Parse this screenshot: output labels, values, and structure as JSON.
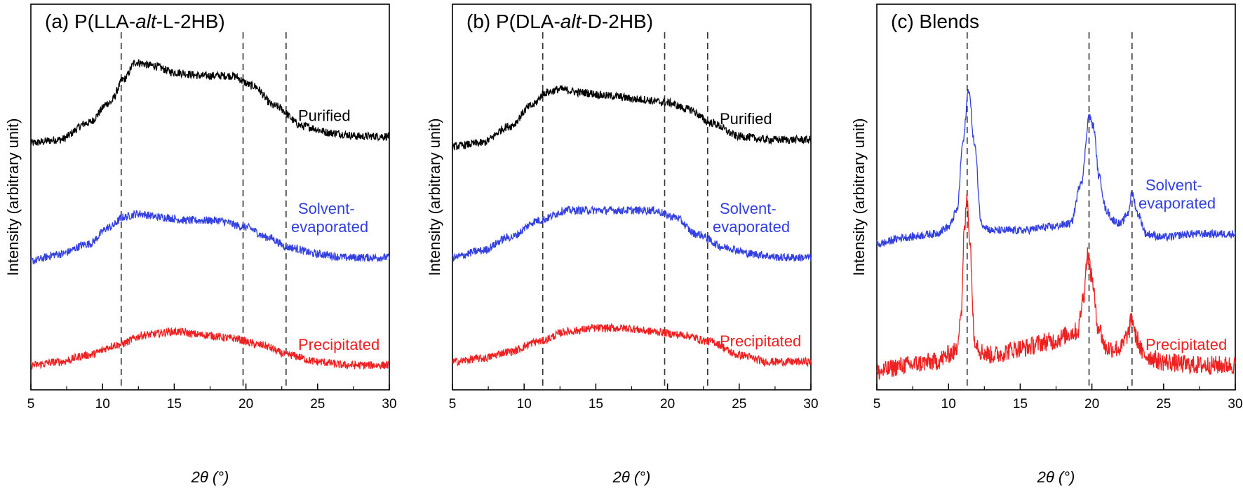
{
  "chart_data": [
    {
      "type": "line",
      "title": "(a) P(LLA-alt-L-2HB)",
      "title_parts": {
        "prefix": "(a) P(LLA-",
        "italic": "alt",
        "suffix": "-L-2HB)"
      },
      "xlabel": "2θ (°)",
      "ylabel": "Intensity (arbitrary unit)",
      "xlim": [
        5,
        30
      ],
      "xticks": [
        "5",
        "10",
        "15",
        "20",
        "25",
        "30"
      ],
      "reference_lines": [
        11.3,
        19.8,
        22.8
      ],
      "series": [
        {
          "name": "Purified",
          "color": "#000000",
          "baseline": 0.7,
          "x": [
            5,
            7,
            9,
            10.5,
            11.5,
            12.3,
            13.5,
            15,
            17,
            19,
            20.5,
            22,
            24,
            26,
            28,
            30
          ],
          "y": [
            0.0,
            0.01,
            0.06,
            0.12,
            0.19,
            0.24,
            0.23,
            0.21,
            0.2,
            0.2,
            0.17,
            0.11,
            0.05,
            0.03,
            0.02,
            0.02
          ]
        },
        {
          "name": "Solvent-evaporated",
          "color": "#3340e0",
          "baseline": 0.35,
          "x": [
            5,
            7,
            9,
            10.5,
            11.5,
            12.5,
            14,
            16,
            18,
            20,
            21.5,
            23,
            25,
            27,
            30
          ],
          "y": [
            0.0,
            0.02,
            0.05,
            0.1,
            0.13,
            0.14,
            0.13,
            0.12,
            0.12,
            0.1,
            0.07,
            0.04,
            0.02,
            0.01,
            0.01
          ]
        },
        {
          "name": "Precipitated",
          "color": "#ee2020",
          "baseline": 0.04,
          "x": [
            5,
            7,
            9,
            11,
            13,
            15,
            17,
            19,
            21,
            23,
            25,
            27,
            30
          ],
          "y": [
            0.0,
            0.01,
            0.03,
            0.06,
            0.09,
            0.1,
            0.09,
            0.08,
            0.06,
            0.03,
            0.01,
            0.0,
            0.0
          ]
        }
      ]
    },
    {
      "type": "line",
      "title": "(b) P(DLA-alt-D-2HB)",
      "title_parts": {
        "prefix": "(b) P(DLA-",
        "italic": "alt",
        "suffix": "-D-2HB)"
      },
      "xlabel": "2θ (°)",
      "ylabel": "Intensity (arbitrary unit)",
      "xlim": [
        5,
        30
      ],
      "xticks": [
        "5",
        "10",
        "15",
        "20",
        "25",
        "30"
      ],
      "reference_lines": [
        11.3,
        19.8,
        22.8
      ],
      "series": [
        {
          "name": "Purified",
          "color": "#000000",
          "baseline": 0.69,
          "x": [
            5,
            7,
            9,
            10.5,
            11.5,
            12.5,
            14,
            16,
            18,
            20,
            21.5,
            23,
            25,
            27,
            30
          ],
          "y": [
            0.0,
            0.01,
            0.06,
            0.12,
            0.16,
            0.17,
            0.16,
            0.15,
            0.14,
            0.13,
            0.11,
            0.07,
            0.03,
            0.02,
            0.02
          ]
        },
        {
          "name": "Solvent-evaporated",
          "color": "#3340e0",
          "baseline": 0.36,
          "x": [
            5,
            7,
            9,
            11,
            13,
            15,
            17,
            19,
            20.5,
            22,
            24,
            26,
            28,
            30
          ],
          "y": [
            0.0,
            0.02,
            0.06,
            0.11,
            0.14,
            0.14,
            0.14,
            0.14,
            0.12,
            0.07,
            0.03,
            0.01,
            0.0,
            0.0
          ]
        },
        {
          "name": "Precipitated",
          "color": "#ee2020",
          "baseline": 0.05,
          "x": [
            5,
            7,
            9,
            11,
            13,
            15,
            17,
            19,
            21,
            23,
            25,
            27,
            30
          ],
          "y": [
            0.0,
            0.01,
            0.03,
            0.06,
            0.09,
            0.1,
            0.1,
            0.09,
            0.08,
            0.06,
            0.02,
            0.0,
            0.0
          ]
        }
      ]
    },
    {
      "type": "line",
      "title": "(c) Blends",
      "title_parts": {
        "prefix": "(c) Blends",
        "italic": "",
        "suffix": ""
      },
      "xlabel": "2θ (°)",
      "ylabel": "Intensity (arbitrary unit)",
      "xlim": [
        5,
        30
      ],
      "xticks": [
        "5",
        "10",
        "15",
        "20",
        "25",
        "30"
      ],
      "reference_lines": [
        11.3,
        19.8,
        22.8
      ],
      "series": [
        {
          "name": "Solvent-evaporated",
          "color": "#3340e0",
          "baseline": 0.4,
          "x": [
            5,
            7,
            9,
            10,
            10.6,
            11.0,
            11.4,
            11.8,
            12.3,
            13,
            15,
            17,
            18.5,
            19.3,
            19.8,
            20.1,
            20.5,
            21,
            21.5,
            22,
            22.5,
            22.8,
            23.2,
            23.8,
            25,
            27,
            30
          ],
          "y": [
            0.0,
            0.02,
            0.03,
            0.05,
            0.1,
            0.3,
            0.46,
            0.3,
            0.06,
            0.04,
            0.04,
            0.05,
            0.06,
            0.19,
            0.38,
            0.35,
            0.2,
            0.1,
            0.07,
            0.06,
            0.09,
            0.15,
            0.09,
            0.03,
            0.02,
            0.03,
            0.03
          ]
        },
        {
          "name": "Precipitated",
          "color": "#ee2020",
          "baseline": 0.02,
          "x": [
            5,
            7,
            9,
            10.5,
            10.9,
            11.1,
            11.3,
            11.5,
            11.8,
            12.3,
            13,
            15,
            17,
            19,
            19.4,
            19.7,
            20.0,
            20.4,
            21,
            22,
            22.5,
            22.8,
            23.1,
            23.6,
            25,
            27,
            30
          ],
          "y": [
            0.0,
            0.02,
            0.03,
            0.06,
            0.18,
            0.42,
            0.52,
            0.38,
            0.1,
            0.06,
            0.05,
            0.07,
            0.09,
            0.12,
            0.22,
            0.35,
            0.28,
            0.14,
            0.07,
            0.07,
            0.11,
            0.16,
            0.1,
            0.05,
            0.03,
            0.02,
            0.02
          ]
        }
      ]
    }
  ]
}
